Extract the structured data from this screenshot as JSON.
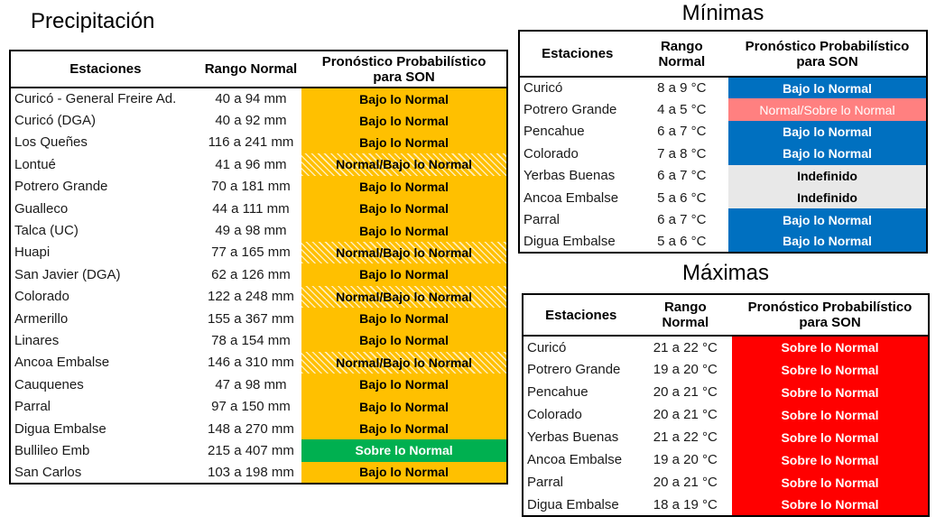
{
  "page": {
    "background": "#FFFFFF",
    "season_code": "SON"
  },
  "styles": {
    "precip_below": {
      "bg": "#FFC000",
      "text": "#000000",
      "bold": true,
      "hatched": false
    },
    "precip_normal_below": {
      "bg": "#FFC000",
      "text": "#000000",
      "bold": true,
      "hatched": true
    },
    "precip_above": {
      "bg": "#00B050",
      "text": "#FFFFFF",
      "bold": true,
      "hatched": false
    },
    "temp_below": {
      "bg": "#0070C0",
      "text": "#FFFFFF",
      "bold": true,
      "hatched": false
    },
    "temp_normal_above": {
      "bg": "#FF8080",
      "text": "#FFFFFF",
      "bold": false,
      "hatched": false
    },
    "temp_undefined": {
      "bg": "#E8E8E8",
      "text": "#000000",
      "bold": true,
      "hatched": false
    },
    "temp_above": {
      "bg": "#FF0000",
      "text": "#FFFFFF",
      "bold": true,
      "hatched": false
    }
  },
  "precipitation": {
    "title": "Precipitación",
    "headers": {
      "station": "Estaciones",
      "range_lines": [
        "Rango Normal"
      ],
      "forecast_lines": [
        "Pronóstico Probabilístico",
        "para SON"
      ]
    },
    "rows": [
      {
        "station": "Curicó - General Freire Ad.",
        "range": "40 a 94 mm",
        "forecast": "Bajo lo Normal",
        "style": "precip_below"
      },
      {
        "station": "Curicó (DGA)",
        "range": "40 a 92 mm",
        "forecast": "Bajo lo Normal",
        "style": "precip_below"
      },
      {
        "station": "Los Queñes",
        "range": "116 a 241 mm",
        "forecast": "Bajo lo Normal",
        "style": "precip_below"
      },
      {
        "station": "Lontué",
        "range": "41 a 96 mm",
        "forecast": "Normal/Bajo lo Normal",
        "style": "precip_normal_below"
      },
      {
        "station": "Potrero Grande",
        "range": "70 a 181 mm",
        "forecast": "Bajo lo Normal",
        "style": "precip_below"
      },
      {
        "station": "Gualleco",
        "range": "44 a 111 mm",
        "forecast": "Bajo lo Normal",
        "style": "precip_below"
      },
      {
        "station": "Talca (UC)",
        "range": "49 a 98 mm",
        "forecast": "Bajo lo Normal",
        "style": "precip_below"
      },
      {
        "station": "Huapi",
        "range": "77 a 165 mm",
        "forecast": "Normal/Bajo lo Normal",
        "style": "precip_normal_below"
      },
      {
        "station": "San Javier (DGA)",
        "range": "62 a 126 mm",
        "forecast": "Bajo lo Normal",
        "style": "precip_below"
      },
      {
        "station": "Colorado",
        "range": "122 a 248 mm",
        "forecast": "Normal/Bajo lo Normal",
        "style": "precip_normal_below"
      },
      {
        "station": "Armerillo",
        "range": "155 a 367 mm",
        "forecast": "Bajo lo Normal",
        "style": "precip_below"
      },
      {
        "station": "Linares",
        "range": "78 a 154 mm",
        "forecast": "Bajo lo Normal",
        "style": "precip_below"
      },
      {
        "station": "Ancoa Embalse",
        "range": "146 a 310 mm",
        "forecast": "Normal/Bajo lo Normal",
        "style": "precip_normal_below"
      },
      {
        "station": "Cauquenes",
        "range": "47 a 98 mm",
        "forecast": "Bajo lo Normal",
        "style": "precip_below"
      },
      {
        "station": "Parral",
        "range": "97 a 150 mm",
        "forecast": "Bajo lo Normal",
        "style": "precip_below"
      },
      {
        "station": "Digua Embalse",
        "range": "148 a 270 mm",
        "forecast": "Bajo lo Normal",
        "style": "precip_below"
      },
      {
        "station": "Bullileo Emb",
        "range": "215 a 407 mm",
        "forecast": "Sobre lo Normal",
        "style": "precip_above"
      },
      {
        "station": "San Carlos",
        "range": "103 a 198 mm",
        "forecast": "Bajo lo Normal",
        "style": "precip_below"
      }
    ]
  },
  "minimas": {
    "title": "Mínimas",
    "headers": {
      "station": "Estaciones",
      "range_lines": [
        "Rango",
        "Normal"
      ],
      "forecast_lines": [
        "Pronóstico Probabilístico",
        "para SON"
      ]
    },
    "rows": [
      {
        "station": "Curicó",
        "range": "8 a 9 °C",
        "forecast": "Bajo lo Normal",
        "style": "temp_below"
      },
      {
        "station": "Potrero Grande",
        "range": "4 a 5 °C",
        "forecast": "Normal/Sobre lo Normal",
        "style": "temp_normal_above"
      },
      {
        "station": "Pencahue",
        "range": "6 a 7 °C",
        "forecast": "Bajo lo Normal",
        "style": "temp_below"
      },
      {
        "station": "Colorado",
        "range": "7 a 8 °C",
        "forecast": "Bajo lo Normal",
        "style": "temp_below"
      },
      {
        "station": "Yerbas Buenas",
        "range": "6 a 7 °C",
        "forecast": "Indefinido",
        "style": "temp_undefined"
      },
      {
        "station": "Ancoa Embalse",
        "range": "5 a 6 °C",
        "forecast": "Indefinido",
        "style": "temp_undefined"
      },
      {
        "station": "Parral",
        "range": "6 a 7 °C",
        "forecast": "Bajo lo Normal",
        "style": "temp_below"
      },
      {
        "station": "Digua Embalse",
        "range": "5 a 6 °C",
        "forecast": "Bajo lo Normal",
        "style": "temp_below"
      }
    ]
  },
  "maximas": {
    "title": "Máximas",
    "headers": {
      "station": "Estaciones",
      "range_lines": [
        "Rango",
        "Normal"
      ],
      "forecast_lines": [
        "Pronóstico Probabilístico",
        "para SON"
      ]
    },
    "rows": [
      {
        "station": "Curicó",
        "range": "21 a 22 °C",
        "forecast": "Sobre lo Normal",
        "style": "temp_above"
      },
      {
        "station": "Potrero Grande",
        "range": "19 a 20 °C",
        "forecast": "Sobre lo Normal",
        "style": "temp_above"
      },
      {
        "station": "Pencahue",
        "range": "20 a 21 °C",
        "forecast": "Sobre lo Normal",
        "style": "temp_above"
      },
      {
        "station": "Colorado",
        "range": "20 a 21 °C",
        "forecast": "Sobre lo Normal",
        "style": "temp_above"
      },
      {
        "station": "Yerbas Buenas",
        "range": "21 a 22 °C",
        "forecast": "Sobre lo Normal",
        "style": "temp_above"
      },
      {
        "station": "Ancoa Embalse",
        "range": "19 a 20 °C",
        "forecast": "Sobre lo Normal",
        "style": "temp_above"
      },
      {
        "station": "Parral",
        "range": "20 a 21 °C",
        "forecast": "Sobre lo Normal",
        "style": "temp_above"
      },
      {
        "station": "Digua Embalse",
        "range": "18 a 19 °C",
        "forecast": "Sobre lo Normal",
        "style": "temp_above"
      }
    ]
  }
}
